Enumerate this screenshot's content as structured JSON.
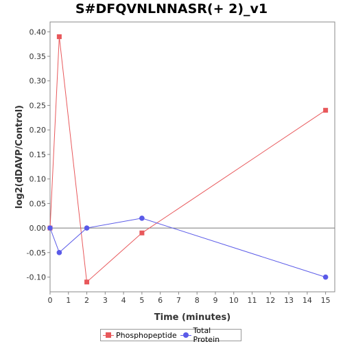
{
  "chart_data": {
    "type": "line",
    "title": "S#DFQVNLNNASR(+ 2)_v1",
    "xlabel": "Time (minutes)",
    "ylabel": "log2(dDAVP/Control)",
    "xlim": [
      0,
      15.5
    ],
    "ylim": [
      -0.13,
      0.42
    ],
    "x_ticks": [
      0,
      1,
      2,
      3,
      4,
      5,
      6,
      7,
      8,
      9,
      10,
      11,
      12,
      13,
      14,
      15
    ],
    "y_ticks": [
      -0.1,
      -0.05,
      0.0,
      0.05,
      0.1,
      0.15,
      0.2,
      0.25,
      0.3,
      0.35,
      0.4
    ],
    "y_tick_labels": [
      "-0.10",
      "-0.05",
      "0.00",
      "0.05",
      "0.10",
      "0.15",
      "0.20",
      "0.25",
      "0.30",
      "0.35",
      "0.40"
    ],
    "zero_line": true,
    "grid": false,
    "legend_position": "bottom",
    "series": [
      {
        "name": "Phosphopeptide",
        "color": "#e8585b",
        "marker": "square",
        "x": [
          0,
          0.5,
          2,
          5,
          15
        ],
        "y": [
          0.0,
          0.39,
          -0.11,
          -0.01,
          0.24
        ]
      },
      {
        "name": "Total Protein",
        "color": "#5a5ae8",
        "marker": "circle",
        "x": [
          0,
          0.5,
          2,
          5,
          15
        ],
        "y": [
          0.0,
          -0.05,
          0.0,
          0.02,
          -0.1
        ]
      }
    ]
  }
}
